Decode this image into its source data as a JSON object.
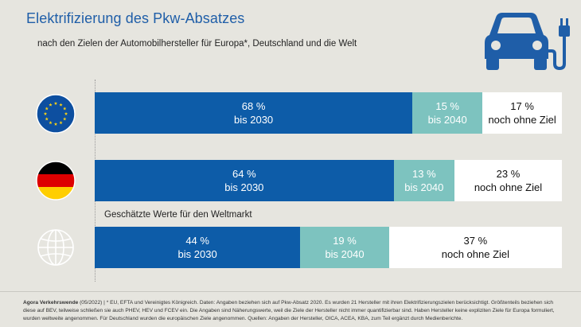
{
  "header": {
    "title": "Elektrifizierung des Pkw-Absatzes",
    "subtitle": "nach den Zielen der Automobilhersteller für Europa*, Deutschland und die Welt"
  },
  "icons": {
    "car": "electric-car-charging-icon",
    "eu": "eu-flag-icon",
    "de": "germany-flag-icon",
    "world": "globe-icon"
  },
  "colors": {
    "title": "#1f5ea8",
    "bis_2030": "#0d5ca8",
    "bis_2040": "#7dc3bf",
    "ohne_ziel": "#ffffff",
    "background": "#e6e5df"
  },
  "world_note": "Geschätzte Werte für den Weltmarkt",
  "chart_data": {
    "type": "bar",
    "orientation": "horizontal",
    "stacked": true,
    "categories": [
      "Europa",
      "Deutschland",
      "Welt"
    ],
    "series": [
      {
        "name": "bis 2030",
        "values": [
          68,
          64,
          44
        ]
      },
      {
        "name": "bis 2040",
        "values": [
          15,
          13,
          19
        ]
      },
      {
        "name": "noch ohne Ziel",
        "values": [
          17,
          23,
          37
        ]
      }
    ],
    "unit": "%",
    "xlim": [
      0,
      100
    ],
    "labels": {
      "Europa": [
        "68 %",
        "bis 2030",
        "15 %",
        "bis 2040",
        "17 %",
        "noch ohne Ziel"
      ],
      "Deutschland": [
        "64 %",
        "bis 2030",
        "13 %",
        "bis 2040",
        "23 %",
        "noch ohne Ziel"
      ],
      "Welt": [
        "44 %",
        "bis 2030",
        "19 %",
        "bis 2040",
        "37 %",
        "noch ohne Ziel"
      ]
    },
    "grid": false,
    "legend": "none"
  },
  "footer": {
    "source": "Agora Verkehrswende",
    "text": "(05/2022) | * EU, EFTA und Vereinigtes Königreich. Daten: Angaben beziehen sich auf Pkw-Absatz 2020. Es wurden 21 Hersteller mit ihren Elektrifizierungszielen berücksichtigt. Größtenteils beziehen sich diese auf BEV, teilweise schließen sie auch PHEV, HEV und FCEV ein. Die Angaben sind Näherungswerte, weil die Ziele der Hersteller nicht immer quantifizierbar sind. Haben Hersteller keine expliziten Ziele für Europa formuliert, wurden weltweite angenommen. Für Deutschland wurden die europäischen Ziele angenommen. Quellen: Angaben der Hersteller, OICA, ACEA, KBA, zum Teil ergänzt durch Medienberichte."
  }
}
